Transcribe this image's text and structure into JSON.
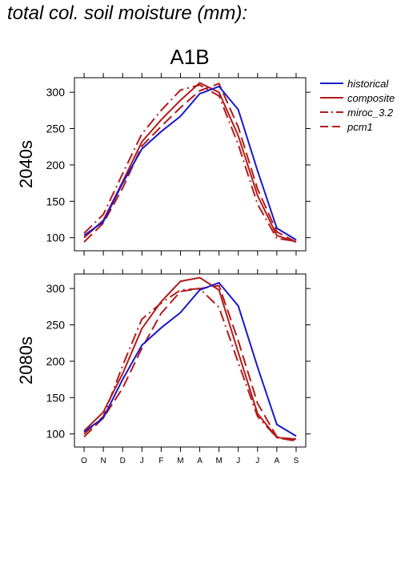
{
  "page_title": "total col. soil moisture (mm):",
  "colors": {
    "historical": "#1a1acc",
    "projection": "#b31b1b",
    "axis": "#000000",
    "background": "#ffffff"
  },
  "chart_data": {
    "type": "line",
    "title": "A1B",
    "xlabel": "",
    "ylabel": "",
    "ylim": [
      82,
      320
    ],
    "yticks": [
      100,
      150,
      200,
      250,
      300
    ],
    "categories": [
      "O",
      "N",
      "D",
      "J",
      "F",
      "M",
      "A",
      "M",
      "J",
      "J",
      "A",
      "S"
    ],
    "legend": {
      "position": "right",
      "entries": [
        {
          "name": "historical",
          "dash": "solid",
          "color": "#1a1acc"
        },
        {
          "name": "composite",
          "dash": "solid",
          "color": "#b31b1b"
        },
        {
          "name": "miroc_3.2",
          "dash": "dashdot",
          "color": "#b31b1b"
        },
        {
          "name": "pcm1",
          "dash": "dashed",
          "color": "#b31b1b"
        }
      ]
    },
    "panels": [
      {
        "label": "2040s",
        "series": [
          {
            "name": "historical",
            "values": [
              103,
              122,
              175,
              222,
              246,
              267,
              298,
              308,
              276,
              192,
              113,
              97
            ]
          },
          {
            "name": "composite",
            "values": [
              100,
              124,
              177,
              232,
              262,
              289,
              313,
              300,
              240,
              158,
              103,
              94
            ]
          },
          {
            "name": "miroc_3.2",
            "values": [
              106,
              132,
              188,
              243,
              275,
              303,
              310,
              295,
              228,
              146,
              99,
              95
            ]
          },
          {
            "name": "pcm1",
            "values": [
              94,
              120,
              168,
              226,
              253,
              279,
              302,
              312,
              252,
              167,
              108,
              94
            ]
          }
        ]
      },
      {
        "label": "2080s",
        "series": [
          {
            "name": "historical",
            "values": [
              103,
              122,
              175,
              222,
              246,
              267,
              298,
              308,
              276,
              192,
              113,
              97
            ]
          },
          {
            "name": "composite",
            "values": [
              104,
              130,
              183,
              245,
              282,
              310,
              315,
              298,
              212,
              128,
              95,
              93
            ]
          },
          {
            "name": "miroc_3.2",
            "values": [
              100,
              124,
              194,
              258,
              280,
              298,
              300,
              274,
              198,
              124,
              95,
              90
            ]
          },
          {
            "name": "pcm1",
            "values": [
              96,
              122,
              163,
              218,
              266,
              296,
              300,
              304,
              228,
              142,
              96,
              91
            ]
          }
        ]
      }
    ]
  }
}
